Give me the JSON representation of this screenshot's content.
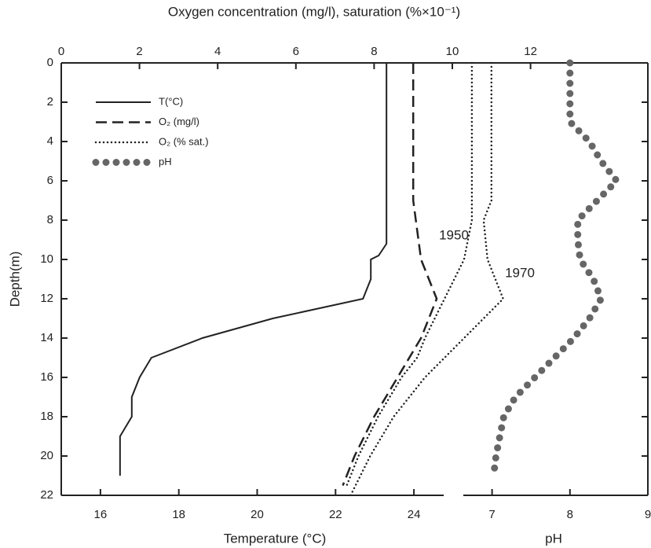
{
  "chart_data": {
    "type": "line",
    "y_label": "Depth(m)",
    "ylim": [
      0,
      22
    ],
    "yticks": [
      0,
      2,
      4,
      6,
      8,
      10,
      12,
      14,
      16,
      18,
      20,
      22
    ],
    "x_top": {
      "label": "Oxygen concentration (mg/l), saturation (%×10⁻¹)",
      "lim": [
        0,
        15
      ],
      "ticks": [
        0,
        2,
        4,
        6,
        8,
        10,
        12
      ]
    },
    "x_temp": {
      "label": "Temperature (°C)",
      "lim": [
        15,
        25
      ],
      "ticks": [
        16,
        18,
        20,
        22,
        24
      ]
    },
    "x_ph": {
      "label": "pH",
      "lim": [
        6.5,
        9
      ],
      "ticks": [
        7,
        8,
        9
      ]
    },
    "color": "#222222",
    "legend": [
      {
        "label": "T(°C)",
        "style": "solid"
      },
      {
        "label": "O₂ (mg/l)",
        "style": "dashed"
      },
      {
        "label": "O₂ (% sat.)",
        "style": "dotted"
      },
      {
        "label": "pH",
        "style": "dots"
      }
    ],
    "series": [
      {
        "axis": "x_temp",
        "style": "solid",
        "depths": [
          0,
          9.2,
          9.8,
          10,
          11,
          12,
          13,
          14,
          15,
          16,
          17,
          18,
          19,
          21
        ],
        "values": [
          23.3,
          23.3,
          23.1,
          22.9,
          22.9,
          22.7,
          20.4,
          18.6,
          17.3,
          17.0,
          16.8,
          16.8,
          16.5,
          16.5
        ]
      },
      {
        "axis": "x_top",
        "style": "dashed",
        "depths": [
          0,
          7,
          10,
          11,
          12,
          14,
          16,
          18,
          20,
          21.5
        ],
        "values": [
          9.0,
          9.0,
          9.2,
          9.4,
          9.6,
          9.2,
          8.6,
          8.0,
          7.5,
          7.2
        ]
      },
      {
        "axis": "x_top",
        "style": "dotted",
        "label": "1950",
        "depths": [
          0,
          7,
          8,
          10,
          12,
          14,
          15,
          16,
          18,
          20,
          21.5
        ],
        "values": [
          10.5,
          10.5,
          10.5,
          10.3,
          9.8,
          9.3,
          9.1,
          8.7,
          8.1,
          7.6,
          7.3
        ]
      },
      {
        "axis": "x_top",
        "style": "dotted",
        "label": "1970",
        "depths": [
          0,
          7,
          8,
          10,
          12,
          14,
          15,
          16,
          18,
          20,
          22
        ],
        "values": [
          11.0,
          11.0,
          10.8,
          10.9,
          11.3,
          10.3,
          9.8,
          9.3,
          8.5,
          7.9,
          7.4
        ]
      },
      {
        "axis": "x_ph",
        "style": "dots",
        "depths": [
          0,
          1,
          2,
          3,
          4,
          5,
          6,
          7,
          8,
          9,
          10,
          11,
          12,
          13,
          14,
          15,
          16,
          17,
          18,
          19,
          20,
          21
        ],
        "values": [
          8.0,
          8.0,
          8.0,
          8.0,
          8.25,
          8.4,
          8.6,
          8.35,
          8.1,
          8.1,
          8.13,
          8.3,
          8.4,
          8.25,
          8.05,
          7.8,
          7.55,
          7.3,
          7.15,
          7.1,
          7.05,
          7.02
        ]
      }
    ]
  }
}
